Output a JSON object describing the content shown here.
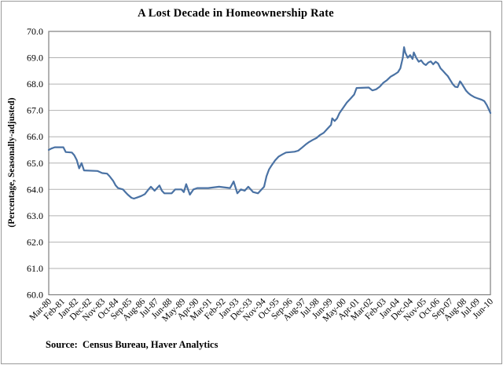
{
  "figure": {
    "title": "A Lost Decade in Homeownership Rate",
    "source": "Source:  Census Bureau, Haver Analytics"
  },
  "chart_data": {
    "type": "line",
    "title": "A Lost Decade in Homeownership Rate",
    "ylabel": "(Percentage, Seasonally-adjusted)",
    "xlabel": "",
    "ylim": [
      60.0,
      70.0
    ],
    "ytick_step": 1.0,
    "ytick_labels": [
      "60.0",
      "61.0",
      "62.0",
      "63.0",
      "64.0",
      "65.0",
      "66.0",
      "67.0",
      "68.0",
      "69.0",
      "70.0"
    ],
    "x_tick_labels": [
      "Mar-80",
      "Feb-81",
      "Jan-82",
      "Dec-82",
      "Nov-83",
      "Oct-84",
      "Sep-85",
      "Aug-86",
      "Jul-87",
      "Jun-88",
      "May-89",
      "Apr-90",
      "Mar-91",
      "Feb-92",
      "Jan-93",
      "Dec-93",
      "Nov-94",
      "Oct-95",
      "Sep-96",
      "Aug-97",
      "Jul-98",
      "Jun-99",
      "May-00",
      "Apr-01",
      "Mar-02",
      "Feb-03",
      "Jan-04",
      "Dec-04",
      "Nov-05",
      "Oct-06",
      "Sep-07",
      "Aug-08",
      "Jul-09",
      "Jun-10"
    ],
    "x_tick_month_interval": 11,
    "months_total": 363,
    "grid": "horizontal",
    "legend": "none",
    "line_color": "#4a72a4",
    "gridline_color": "#b2b2b2",
    "plot_border_color": "#7f7f7f",
    "series": [
      {
        "name": "Homeownership Rate",
        "points": [
          [
            0,
            65.5
          ],
          [
            2,
            65.55
          ],
          [
            5,
            65.6
          ],
          [
            12,
            65.6
          ],
          [
            14,
            65.42
          ],
          [
            19,
            65.4
          ],
          [
            21,
            65.3
          ],
          [
            23,
            65.12
          ],
          [
            25,
            64.8
          ],
          [
            27,
            65.0
          ],
          [
            29,
            64.72
          ],
          [
            40,
            64.7
          ],
          [
            44,
            64.62
          ],
          [
            48,
            64.6
          ],
          [
            50,
            64.5
          ],
          [
            53,
            64.32
          ],
          [
            55,
            64.15
          ],
          [
            57,
            64.05
          ],
          [
            61,
            64.0
          ],
          [
            63,
            63.9
          ],
          [
            65,
            63.8
          ],
          [
            68,
            63.68
          ],
          [
            70,
            63.65
          ],
          [
            73,
            63.7
          ],
          [
            76,
            63.75
          ],
          [
            79,
            63.82
          ],
          [
            82,
            64.0
          ],
          [
            84,
            64.1
          ],
          [
            87,
            63.95
          ],
          [
            89,
            64.05
          ],
          [
            91,
            64.15
          ],
          [
            93,
            63.95
          ],
          [
            95,
            63.85
          ],
          [
            101,
            63.85
          ],
          [
            104,
            64.0
          ],
          [
            109,
            64.0
          ],
          [
            111,
            63.9
          ],
          [
            113,
            64.2
          ],
          [
            116,
            63.8
          ],
          [
            119,
            64.0
          ],
          [
            122,
            64.05
          ],
          [
            131,
            64.05
          ],
          [
            140,
            64.1
          ],
          [
            149,
            64.05
          ],
          [
            152,
            64.3
          ],
          [
            155,
            63.85
          ],
          [
            158,
            64.0
          ],
          [
            161,
            63.95
          ],
          [
            164,
            64.1
          ],
          [
            168,
            63.9
          ],
          [
            172,
            63.85
          ],
          [
            175,
            64.0
          ],
          [
            177,
            64.1
          ],
          [
            179,
            64.5
          ],
          [
            181,
            64.75
          ],
          [
            183,
            64.9
          ],
          [
            186,
            65.1
          ],
          [
            189,
            65.25
          ],
          [
            192,
            65.33
          ],
          [
            195,
            65.4
          ],
          [
            202,
            65.43
          ],
          [
            205,
            65.47
          ],
          [
            208,
            65.58
          ],
          [
            211,
            65.7
          ],
          [
            214,
            65.8
          ],
          [
            217,
            65.88
          ],
          [
            220,
            65.95
          ],
          [
            223,
            66.07
          ],
          [
            226,
            66.15
          ],
          [
            229,
            66.3
          ],
          [
            232,
            66.45
          ],
          [
            233,
            66.7
          ],
          [
            235,
            66.6
          ],
          [
            237,
            66.7
          ],
          [
            239,
            66.9
          ],
          [
            242,
            67.1
          ],
          [
            245,
            67.3
          ],
          [
            248,
            67.45
          ],
          [
            251,
            67.6
          ],
          [
            253,
            67.85
          ],
          [
            263,
            67.87
          ],
          [
            266,
            67.76
          ],
          [
            269,
            67.8
          ],
          [
            272,
            67.9
          ],
          [
            275,
            68.05
          ],
          [
            278,
            68.15
          ],
          [
            281,
            68.28
          ],
          [
            284,
            68.36
          ],
          [
            287,
            68.45
          ],
          [
            289,
            68.6
          ],
          [
            291,
            69.0
          ],
          [
            292,
            69.4
          ],
          [
            293,
            69.2
          ],
          [
            295,
            69.0
          ],
          [
            297,
            69.1
          ],
          [
            299,
            68.95
          ],
          [
            300,
            69.2
          ],
          [
            302,
            69.0
          ],
          [
            304,
            68.85
          ],
          [
            306,
            68.9
          ],
          [
            308,
            68.78
          ],
          [
            310,
            68.72
          ],
          [
            312,
            68.82
          ],
          [
            314,
            68.86
          ],
          [
            316,
            68.75
          ],
          [
            318,
            68.85
          ],
          [
            320,
            68.78
          ],
          [
            322,
            68.6
          ],
          [
            324,
            68.5
          ],
          [
            326,
            68.4
          ],
          [
            328,
            68.3
          ],
          [
            330,
            68.15
          ],
          [
            332,
            68.0
          ],
          [
            334,
            67.9
          ],
          [
            336,
            67.88
          ],
          [
            338,
            68.1
          ],
          [
            339,
            68.05
          ],
          [
            341,
            67.9
          ],
          [
            343,
            67.75
          ],
          [
            345,
            67.65
          ],
          [
            347,
            67.58
          ],
          [
            350,
            67.5
          ],
          [
            353,
            67.45
          ],
          [
            356,
            67.4
          ],
          [
            358,
            67.35
          ],
          [
            360,
            67.2
          ],
          [
            362,
            67.0
          ],
          [
            363,
            66.9
          ]
        ]
      }
    ]
  }
}
